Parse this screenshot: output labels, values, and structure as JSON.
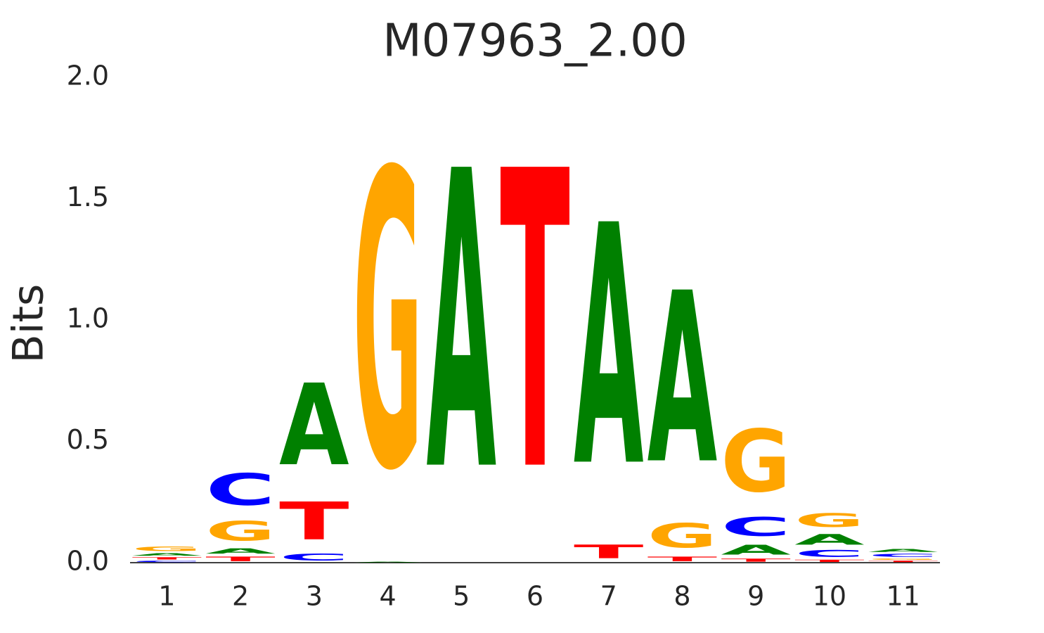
{
  "chart_data": {
    "type": "logo",
    "title": "M07963_2.00",
    "y_label": "Bits",
    "categories": [
      "1",
      "2",
      "3",
      "4",
      "5",
      "6",
      "7",
      "8",
      "9",
      "10",
      "11"
    ],
    "colors": {
      "A": "#008000",
      "C": "#0000ff",
      "G": "#ffa500",
      "T": "#ff0000"
    },
    "columns": [
      {
        "letters": [
          "C",
          "T",
          "A",
          "G"
        ],
        "values": [
          0.01,
          0.015,
          0.017,
          0.03
        ]
      },
      {
        "letters": [
          "T",
          "A",
          "G",
          "C"
        ],
        "values": [
          0.03,
          0.035,
          0.13,
          0.21
        ]
      },
      {
        "letters": [
          "C",
          "T",
          "A"
        ],
        "values": [
          0.045,
          0.25,
          0.54
        ]
      },
      {
        "letters": [
          "A",
          "G"
        ],
        "values": [
          0.005,
          1.96
        ]
      },
      {
        "letters": [
          "A"
        ],
        "values": [
          1.97
        ]
      },
      {
        "letters": [
          "T"
        ],
        "values": [
          1.97
        ]
      },
      {
        "letters": [
          "T",
          "A"
        ],
        "values": [
          0.09,
          1.59
        ]
      },
      {
        "letters": [
          "T",
          "G",
          "A"
        ],
        "values": [
          0.03,
          0.16,
          1.13
        ]
      },
      {
        "letters": [
          "T",
          "A",
          "C",
          "G"
        ],
        "values": [
          0.02,
          0.065,
          0.125,
          0.41
        ]
      },
      {
        "letters": [
          "T",
          "C",
          "A",
          "G"
        ],
        "values": [
          0.015,
          0.045,
          0.07,
          0.09
        ]
      },
      {
        "letters": [
          "T",
          "G",
          "C",
          "A"
        ],
        "values": [
          0.01,
          0.01,
          0.02,
          0.02
        ]
      }
    ],
    "ylim": [
      0,
      2
    ],
    "yticks": [
      {
        "value": 0,
        "label": "0.0"
      },
      0.5,
      {
        "value": 1,
        "label": "1.0"
      },
      1.5,
      {
        "value": 2,
        "label": "2.0"
      }
    ]
  }
}
